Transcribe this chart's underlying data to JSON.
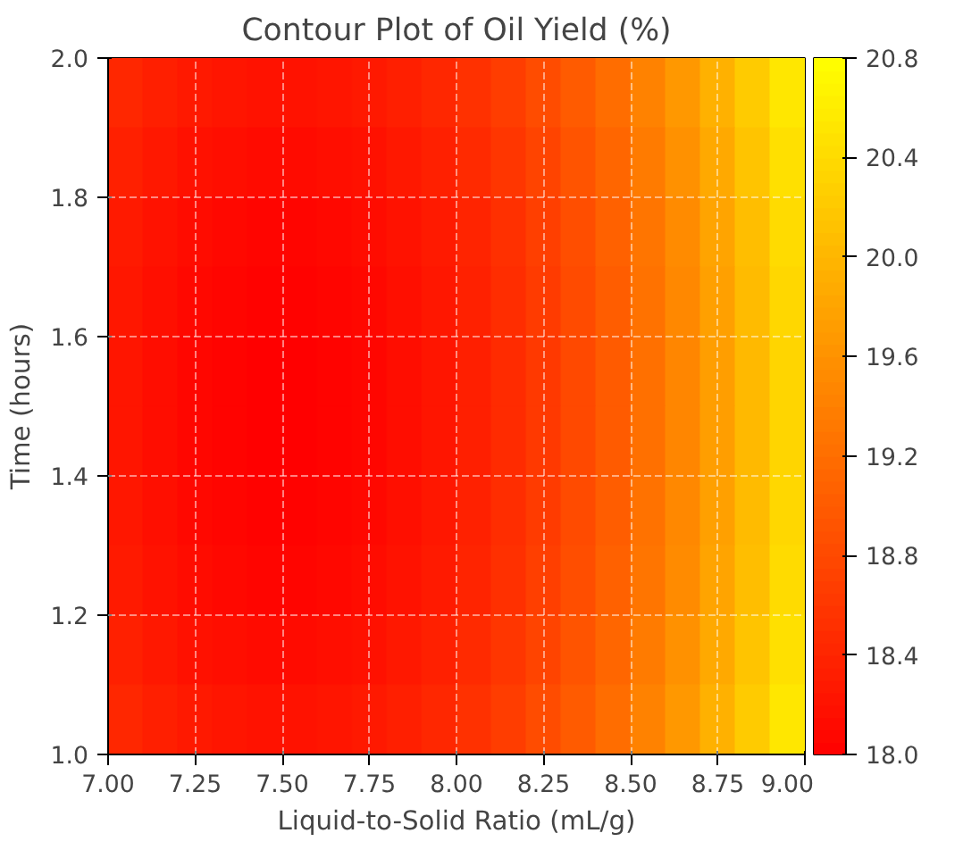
{
  "chart_data": {
    "type": "heatmap",
    "title": "Contour Plot of Oil Yield (%)",
    "xlabel": "Liquid-to-Solid Ratio (mL/g)",
    "ylabel": "Time (hours)",
    "xlim": [
      7.0,
      9.0
    ],
    "ylim": [
      1.0,
      2.0
    ],
    "xticks": [
      {
        "value": 7.0,
        "label": "7.00"
      },
      {
        "value": 7.25,
        "label": "7.25"
      },
      {
        "value": 7.5,
        "label": "7.50"
      },
      {
        "value": 7.75,
        "label": "7.75"
      },
      {
        "value": 8.0,
        "label": "8.00"
      },
      {
        "value": 8.25,
        "label": "8.25"
      },
      {
        "value": 8.5,
        "label": "8.50"
      },
      {
        "value": 8.75,
        "label": "8.75"
      },
      {
        "value": 9.0,
        "label": "9.00"
      }
    ],
    "yticks": [
      {
        "value": 1.0,
        "label": "1.0"
      },
      {
        "value": 1.2,
        "label": "1.2"
      },
      {
        "value": 1.4,
        "label": "1.4"
      },
      {
        "value": 1.6,
        "label": "1.6"
      },
      {
        "value": 1.8,
        "label": "1.8"
      },
      {
        "value": 2.0,
        "label": "2.0"
      }
    ],
    "clim": [
      18.0,
      20.8
    ],
    "cticks": [
      {
        "value": 18.0,
        "label": "18.0"
      },
      {
        "value": 18.4,
        "label": "18.4"
      },
      {
        "value": 18.8,
        "label": "18.8"
      },
      {
        "value": 19.2,
        "label": "19.2"
      },
      {
        "value": 19.6,
        "label": "19.6"
      },
      {
        "value": 20.0,
        "label": "20.0"
      },
      {
        "value": 20.4,
        "label": "20.4"
      },
      {
        "value": 20.8,
        "label": "20.8"
      }
    ],
    "grid": true,
    "cells": [
      [
        18.43,
        18.34,
        18.27,
        18.23,
        18.2,
        18.2,
        18.23,
        18.27,
        18.34,
        18.43,
        18.54,
        18.67,
        18.83,
        19.0,
        19.2,
        19.43,
        19.67,
        19.94,
        20.23,
        20.54
      ],
      [
        18.35,
        18.26,
        18.19,
        18.15,
        18.12,
        18.12,
        18.15,
        18.19,
        18.26,
        18.35,
        18.46,
        18.59,
        18.75,
        18.92,
        19.12,
        19.35,
        19.59,
        19.86,
        20.15,
        20.46
      ],
      [
        18.29,
        18.2,
        18.13,
        18.09,
        18.06,
        18.06,
        18.09,
        18.13,
        18.2,
        18.29,
        18.4,
        18.53,
        18.69,
        18.86,
        19.06,
        19.29,
        19.53,
        19.8,
        20.09,
        20.4
      ],
      [
        18.25,
        18.16,
        18.09,
        18.05,
        18.02,
        18.02,
        18.05,
        18.09,
        18.16,
        18.25,
        18.36,
        18.49,
        18.65,
        18.82,
        19.02,
        19.25,
        19.49,
        19.76,
        20.05,
        20.36
      ],
      [
        18.23,
        18.14,
        18.07,
        18.03,
        18.0,
        18.0,
        18.03,
        18.07,
        18.14,
        18.23,
        18.34,
        18.47,
        18.63,
        18.8,
        19.0,
        19.23,
        19.47,
        19.74,
        20.03,
        20.34
      ],
      [
        18.23,
        18.14,
        18.07,
        18.03,
        18.0,
        18.0,
        18.03,
        18.07,
        18.14,
        18.23,
        18.34,
        18.47,
        18.63,
        18.8,
        19.0,
        19.23,
        19.47,
        19.74,
        20.03,
        20.34
      ],
      [
        18.25,
        18.16,
        18.09,
        18.05,
        18.02,
        18.02,
        18.05,
        18.09,
        18.16,
        18.25,
        18.36,
        18.49,
        18.65,
        18.82,
        19.02,
        19.25,
        19.49,
        19.76,
        20.05,
        20.36
      ],
      [
        18.29,
        18.2,
        18.13,
        18.09,
        18.06,
        18.06,
        18.09,
        18.13,
        18.2,
        18.29,
        18.4,
        18.53,
        18.69,
        18.86,
        19.06,
        19.29,
        19.53,
        19.8,
        20.09,
        20.4
      ],
      [
        18.35,
        18.26,
        18.19,
        18.15,
        18.12,
        18.12,
        18.15,
        18.19,
        18.26,
        18.35,
        18.46,
        18.59,
        18.75,
        18.92,
        19.12,
        19.35,
        19.59,
        19.86,
        20.15,
        20.46
      ],
      [
        18.43,
        18.34,
        18.27,
        18.23,
        18.2,
        18.2,
        18.23,
        18.27,
        18.34,
        18.43,
        18.54,
        18.67,
        18.83,
        19.0,
        19.2,
        19.43,
        19.67,
        19.94,
        20.23,
        20.54
      ]
    ]
  }
}
